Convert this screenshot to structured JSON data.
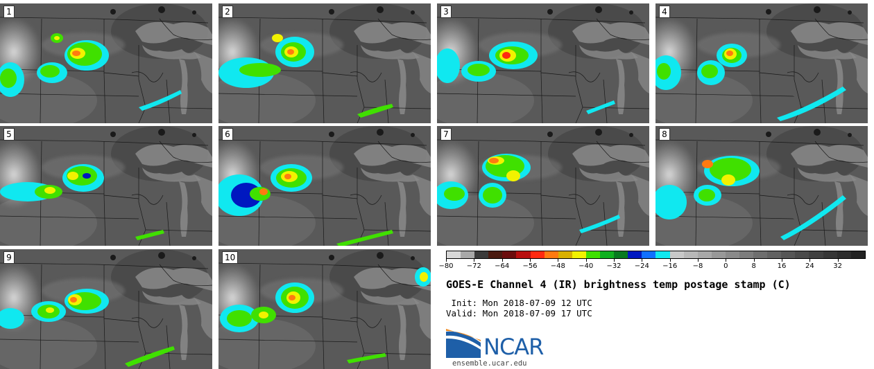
{
  "figure": {
    "title": "GOES-E Channel 4 (IR) brightness temp postage stamp (C)",
    "init_text": " Init: Mon 2018-07-09 12 UTC",
    "valid_text": "Valid: Mon 2018-07-09 17 UTC",
    "logo_text": "NCAR",
    "url": "ensemble.ucar.edu"
  },
  "panels": [
    {
      "label": "1"
    },
    {
      "label": "2"
    },
    {
      "label": "3"
    },
    {
      "label": "4"
    },
    {
      "label": "5"
    },
    {
      "label": "6"
    },
    {
      "label": "7"
    },
    {
      "label": "8"
    },
    {
      "label": "9"
    },
    {
      "label": "10"
    }
  ],
  "colorbar": {
    "min": -80,
    "max": 40,
    "tick_labels": [
      "−80",
      "−72",
      "−64",
      "−56",
      "−48",
      "−40",
      "−32",
      "−24",
      "−16",
      "−8",
      "0",
      "8",
      "16",
      "24",
      "32"
    ],
    "tick_values": [
      -80,
      -72,
      -64,
      -56,
      -48,
      -40,
      -32,
      -24,
      -16,
      -8,
      0,
      8,
      16,
      24,
      32
    ],
    "colors": [
      "#d8d8d8",
      "#a8a8a8",
      "#3a3a3a",
      "#4a1a10",
      "#6b0d0d",
      "#b80f0f",
      "#ff2a10",
      "#ff7a10",
      "#d9b000",
      "#f2f200",
      "#40e000",
      "#10b020",
      "#087a20",
      "#0018c0",
      "#1070ff",
      "#10e8f0",
      "#c8c8c8",
      "#b8b8b8",
      "#a8a8a8",
      "#989898",
      "#8a8a8a",
      "#7c7c7c",
      "#6e6e6e",
      "#626262",
      "#565656",
      "#4a4a4a",
      "#404040",
      "#363636",
      "#2c2c2c",
      "#222222"
    ]
  }
}
